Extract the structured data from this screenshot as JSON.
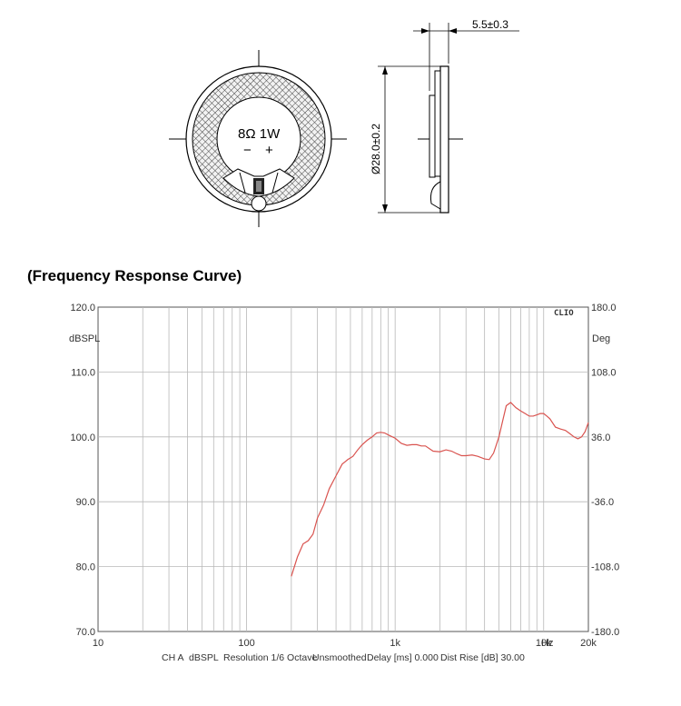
{
  "drawing": {
    "front_label": "8Ω 1W",
    "minus": "−",
    "plus": "+",
    "diameter_label": "Ø28.0±0.2",
    "thickness_label": "5.5±0.3"
  },
  "section_title": "(Frequency Response Curve)",
  "chart_data": {
    "type": "line",
    "x_scale": "log",
    "xlim": [
      10,
      20000
    ],
    "ylim": [
      70,
      120
    ],
    "y_unit_label": "dBSPL",
    "y2_unit_label": "Deg",
    "y2lim": [
      -180,
      180
    ],
    "brand_label": "CLIO",
    "grid": true,
    "x_ticks": [
      {
        "value": 10,
        "label": "10"
      },
      {
        "value": 100,
        "label": "100"
      },
      {
        "value": 1000,
        "label": "1k"
      },
      {
        "value": 10000,
        "label": "10k"
      },
      {
        "value": 20000,
        "label": "20k"
      }
    ],
    "x_unit_label": "Hz",
    "y_ticks": [
      {
        "value": 120,
        "label": "120.0"
      },
      {
        "value": 110,
        "label": "110.0"
      },
      {
        "value": 100,
        "label": "100.0"
      },
      {
        "value": 90,
        "label": "90.0"
      },
      {
        "value": 80,
        "label": "80.0"
      },
      {
        "value": 70,
        "label": "70.0"
      }
    ],
    "y2_ticks": [
      {
        "value": 180,
        "label": "180.0"
      },
      {
        "value": 108,
        "label": "108.0"
      },
      {
        "value": 36,
        "label": "36.0"
      },
      {
        "value": -36,
        "label": "-36.0"
      },
      {
        "value": -108,
        "label": "-108.0"
      },
      {
        "value": -180,
        "label": "-180.0"
      }
    ],
    "series": [
      {
        "color": "#d9534f",
        "x": [
          200,
          220,
          240,
          260,
          280,
          300,
          330,
          360,
          400,
          440,
          480,
          520,
          560,
          600,
          650,
          700,
          750,
          800,
          850,
          900,
          1000,
          1100,
          1200,
          1300,
          1400,
          1500,
          1600,
          1800,
          2000,
          2200,
          2400,
          2600,
          2800,
          3000,
          3300,
          3600,
          4000,
          4300,
          4600,
          5000,
          5300,
          5600,
          6000,
          6500,
          7000,
          7500,
          8000,
          8500,
          9000,
          9500,
          10000,
          10500,
          11000,
          12000,
          13000,
          14000,
          15000,
          16000,
          17000,
          18000,
          19000,
          20000
        ],
        "y": [
          78.5,
          81.5,
          83.5,
          84.0,
          85.0,
          87.5,
          89.5,
          92.0,
          94.0,
          95.8,
          96.5,
          97.0,
          98.0,
          98.8,
          99.5,
          100.0,
          100.6,
          100.7,
          100.6,
          100.3,
          99.8,
          99.0,
          98.7,
          98.8,
          98.8,
          98.6,
          98.6,
          97.8,
          97.7,
          98.0,
          97.8,
          97.4,
          97.1,
          97.1,
          97.2,
          97.0,
          96.6,
          96.5,
          97.5,
          100.0,
          102.5,
          104.8,
          105.3,
          104.5,
          104.0,
          103.6,
          103.2,
          103.2,
          103.4,
          103.6,
          103.6,
          103.2,
          102.8,
          101.5,
          101.2,
          101.0,
          100.5,
          100.0,
          99.7,
          100.0,
          100.8,
          102.2
        ]
      }
    ],
    "footer": {
      "channel": "CH A",
      "unit": "dBSPL",
      "resolution": "Resolution 1/6 Octave",
      "smoothing": "Unsmoothed",
      "delay": "Delay [ms] 0.000",
      "dist_rise": "Dist Rise [dB] 30.00"
    }
  }
}
